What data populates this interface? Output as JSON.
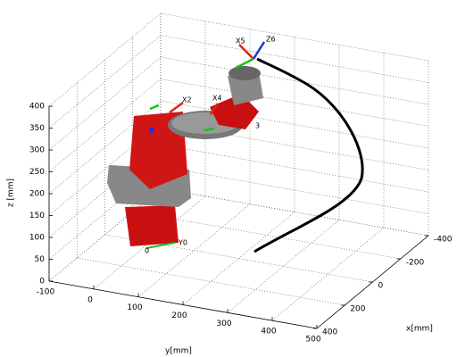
{
  "chart_data": {
    "type": "line3d",
    "xlabel": "x[mm]",
    "ylabel": "y[mm]",
    "zlabel": "z [mm]",
    "xlim": [
      -400,
      400
    ],
    "ylim": [
      -100,
      500
    ],
    "zlim": [
      0,
      400
    ],
    "xticks": [
      -400,
      -200,
      0,
      200,
      400
    ],
    "yticks": [
      -100,
      0,
      100,
      200,
      300,
      400,
      500
    ],
    "zticks": [
      0,
      50,
      100,
      150,
      200,
      250,
      300,
      350,
      400
    ],
    "grid": true,
    "annotations": [
      "X5",
      "Z6",
      "X2",
      "X4",
      "Y0",
      "0",
      "3"
    ]
  }
}
